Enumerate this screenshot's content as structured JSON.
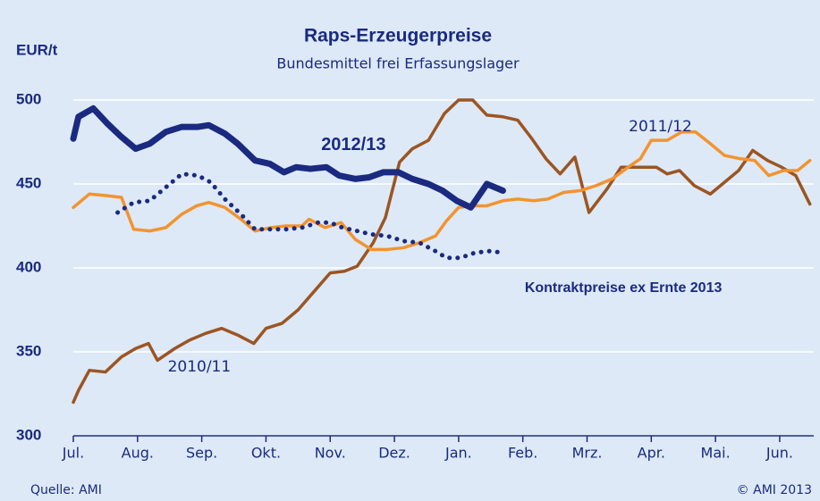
{
  "chart_data": {
    "type": "line",
    "title": "Raps-Erzeugerpreise",
    "subtitle": "Bundesmittel frei Erfassungslager",
    "y_label": "EUR/t",
    "source": "Quelle: AMI",
    "copyright": "© AMI 2013",
    "xlim": [
      0,
      11.53
    ],
    "xticks": [
      {
        "value": 0,
        "label": "Jul."
      },
      {
        "value": 1,
        "label": "Aug."
      },
      {
        "value": 2,
        "label": "Sep."
      },
      {
        "value": 3,
        "label": "Okt."
      },
      {
        "value": 4,
        "label": "Nov."
      },
      {
        "value": 5,
        "label": "Dez."
      },
      {
        "value": 6,
        "label": "Jan."
      },
      {
        "value": 7,
        "label": "Feb."
      },
      {
        "value": 8,
        "label": "Mrz."
      },
      {
        "value": 9,
        "label": "Apr."
      },
      {
        "value": 10,
        "label": "Mai."
      },
      {
        "value": 11,
        "label": "Jun."
      }
    ],
    "ylim": [
      300,
      500
    ],
    "yticks": [
      300,
      350,
      400,
      450,
      500
    ],
    "grid": true,
    "series": [
      {
        "name": "2010/11",
        "color": "#9b5523",
        "width": 3.5,
        "line_style": "solid",
        "x": [
          0,
          0.08,
          0.25,
          0.5,
          0.75,
          0.97,
          1.17,
          1.31,
          1.58,
          1.81,
          2.06,
          2.31,
          2.56,
          2.81,
          3,
          3.25,
          3.5,
          3.75,
          4,
          4.22,
          4.42,
          4.67,
          4.86,
          5.08,
          5.28,
          5.53,
          5.78,
          6,
          6.22,
          6.44,
          6.69,
          6.92,
          7.14,
          7.36,
          7.58,
          7.81,
          8.03,
          8.31,
          8.53,
          8.81,
          9.08,
          9.25,
          9.44,
          9.67,
          9.92,
          10.14,
          10.36,
          10.58,
          10.81,
          11.03,
          11.25,
          11.47
        ],
        "values": [
          320,
          327,
          339,
          338,
          347,
          352,
          355,
          345,
          352,
          357,
          361,
          364,
          360,
          355,
          364,
          367,
          375,
          386,
          397,
          398,
          401,
          415,
          430,
          463,
          471,
          476,
          492,
          500,
          500,
          491,
          490,
          488,
          477,
          465,
          456,
          466,
          433,
          447,
          460,
          460,
          460,
          456,
          458,
          449,
          444,
          451,
          458,
          470,
          464,
          460,
          455,
          438
        ],
        "label_x": 1.47,
        "label_y": 341
      },
      {
        "name": "2011/12",
        "color": "#f39330",
        "width": 3.5,
        "line_style": "solid",
        "x": [
          0,
          0.25,
          0.53,
          0.75,
          0.94,
          1.19,
          1.44,
          1.69,
          1.92,
          2.11,
          2.36,
          2.61,
          2.83,
          3.08,
          3.31,
          3.56,
          3.67,
          3.92,
          4.17,
          4.39,
          4.64,
          4.89,
          5.14,
          5.39,
          5.64,
          5.81,
          6,
          6.22,
          6.44,
          6.69,
          6.92,
          7.17,
          7.39,
          7.64,
          7.89,
          8.14,
          8.39,
          8.64,
          8.83,
          9,
          9.25,
          9.47,
          9.69,
          9.92,
          10.14,
          10.39,
          10.61,
          10.83,
          11.06,
          11.28,
          11.47
        ],
        "values": [
          436,
          444,
          443,
          442,
          423,
          422,
          424,
          432,
          437,
          439,
          436,
          429,
          422,
          424,
          425,
          425,
          429,
          424,
          427,
          417,
          411,
          411,
          412,
          415,
          419,
          428,
          436,
          437,
          437,
          440,
          441,
          440,
          441,
          445,
          446,
          449,
          453,
          460,
          465,
          476,
          476,
          481,
          481,
          474,
          467,
          465,
          464,
          455,
          458,
          458,
          464
        ],
        "label_x": 8.65,
        "label_y": 484
      },
      {
        "name": "2012/13",
        "color": "#1a2a80",
        "width": 7,
        "line_style": "solid",
        "x": [
          0,
          0.08,
          0.31,
          0.53,
          0.75,
          0.97,
          1.19,
          1.44,
          1.69,
          1.94,
          2.11,
          2.36,
          2.56,
          2.83,
          3.06,
          3.28,
          3.47,
          3.69,
          3.94,
          4.14,
          4.39,
          4.61,
          4.83,
          5.06,
          5.28,
          5.53,
          5.75,
          5.97,
          6.19,
          6.44,
          6.69
        ],
        "values": [
          477,
          490,
          495,
          486,
          478,
          471,
          474,
          481,
          484,
          484,
          485,
          480,
          474,
          464,
          462,
          457,
          460,
          459,
          460,
          455,
          453,
          454,
          457,
          457,
          453,
          450,
          446,
          440,
          436,
          450,
          446
        ],
        "label_x": 3.86,
        "label_y": 473
      },
      {
        "name": "Kontraktpreise ex Ernte 2013",
        "color": "#1a2a80",
        "width": 5,
        "line_style": "dotted",
        "x": [
          0.69,
          0.94,
          1.19,
          1.44,
          1.69,
          1.94,
          2.14,
          2.36,
          2.61,
          2.83,
          3.06,
          3.31,
          3.56,
          3.81,
          4,
          4.19,
          4.42,
          4.64,
          4.89,
          5.14,
          5.39,
          5.64,
          5.81,
          6.03,
          6.25,
          6.47,
          6.72
        ],
        "values": [
          433,
          439,
          440,
          448,
          456,
          455,
          451,
          441,
          432,
          423,
          423,
          423,
          424,
          427,
          427,
          424,
          422,
          420,
          419,
          416,
          415,
          410,
          406,
          406,
          409,
          410,
          409
        ],
        "label_x": 7.03,
        "label_y": 388
      }
    ]
  }
}
